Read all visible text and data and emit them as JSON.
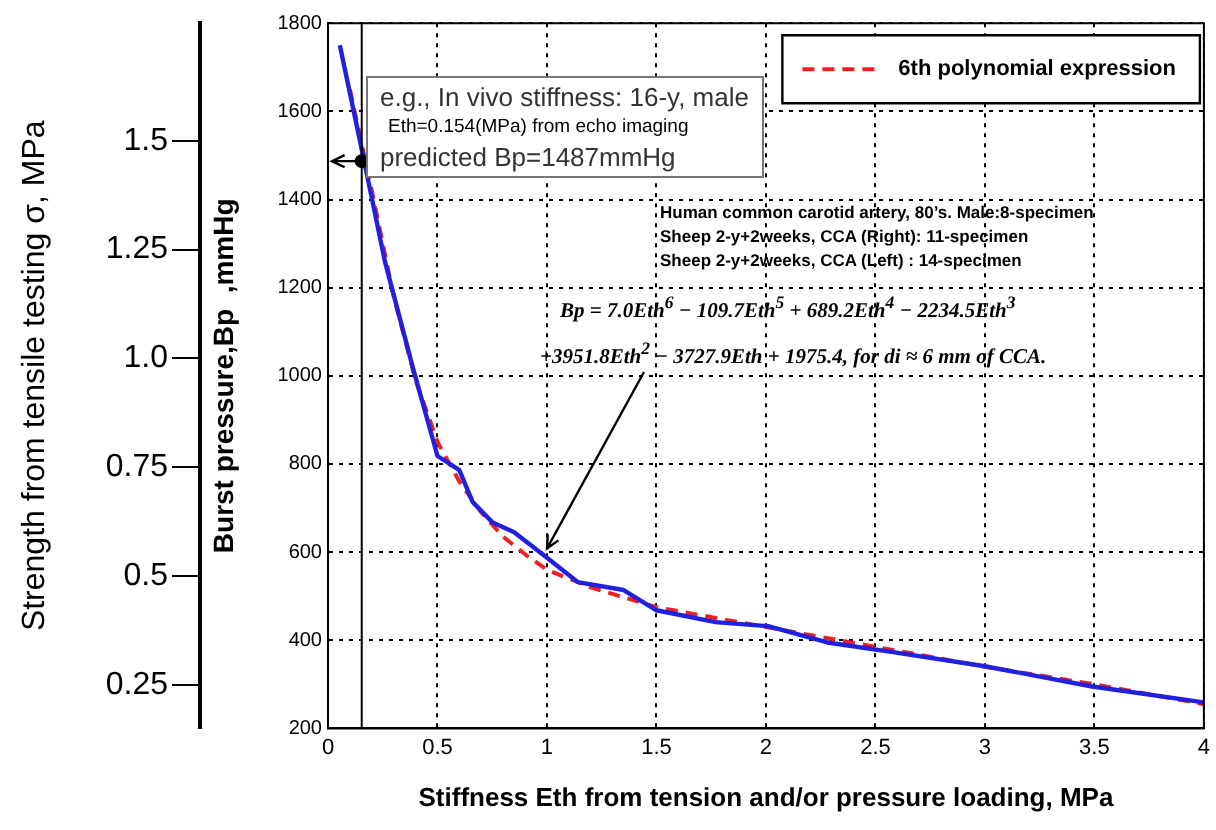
{
  "chart_data": {
    "type": "line",
    "xlabel": "Stiffness Eth from tension and/or pressure loading, MPa",
    "ylabel": "Burst pressure,Bp  ,mmHg",
    "y2label": "Strength from tensile testing σ, MPa",
    "xlim": [
      0,
      4
    ],
    "xticks": [
      0,
      0.5,
      1,
      1.5,
      2,
      2.5,
      3,
      3.5,
      4
    ],
    "ylim": [
      200,
      1800
    ],
    "yticks": [
      200,
      400,
      600,
      800,
      1000,
      1200,
      1400,
      1600,
      1800
    ],
    "y2lim": [
      0.15,
      1.77
    ],
    "y2ticks": [
      0.25,
      0.5,
      0.75,
      {
        "value": 1,
        "label": "1.0"
      },
      1.25,
      1.5
    ],
    "grid": true,
    "legend": "top right",
    "marker": "none",
    "series": [
      {
        "color": "#2020dd",
        "line_style": "solid",
        "x": [
          0.054,
          0.16,
          0.26,
          0.39,
          0.5,
          0.6,
          0.66,
          0.75,
          0.85,
          0.99,
          1.14,
          1.35,
          1.5,
          1.77,
          2.01,
          2.28,
          2.58,
          3.0,
          3.49,
          4.0
        ],
        "values": [
          1750,
          1500,
          1259,
          1014,
          818,
          786,
          714,
          668,
          645,
          591,
          532,
          514,
          468,
          441,
          432,
          395,
          373,
          341,
          295,
          259
        ]
      },
      {
        "name": "6th polynomial expression",
        "color": "#ee2020",
        "line_style": "dashed",
        "x": [
          0.1,
          0.2,
          0.3,
          0.4,
          0.5,
          0.6,
          0.7,
          0.8,
          0.9,
          1.0,
          1.2,
          1.5,
          2.0,
          2.5,
          3.0,
          3.5,
          4.0
        ],
        "values": [
          1650,
          1420,
          1180,
          990,
          850,
          760,
          690,
          635,
          595,
          560,
          520,
          475,
          430,
          385,
          340,
          300,
          255
        ]
      }
    ],
    "ref_lines": [
      {
        "axis": "x",
        "value": 0.154,
        "color": "#000000",
        "line_style": "solid"
      }
    ],
    "annotations": [
      "e.g., In vivo stiffness: 16-y, male",
      "Eth=0.154(MPa)  from echo imaging",
      {
        "text": "predicted  Bp=1487mmHg",
        "x": 0.154,
        "y": 1487
      },
      "Human common carotid artery, 80’s. Male:8-specimen",
      "Sheep 2-y+2weeks, CCA (Right): 11-specimen",
      "Sheep 2-y+2weeks, CCA (Left) : 14-specimen",
      "Bp = 7.0Eth$^{6}$ − 109.7Eth$^{5}$ + 689.2Eth$^{4}$ − 2234.5Eth$^{3}$",
      {
        "text": "+3951.8Eth$^{2}$ − 3727.9Eth + 1975.4, for di ≈ 6 mm of CCA.",
        "x": 1.0,
        "y": 590
      }
    ]
  }
}
